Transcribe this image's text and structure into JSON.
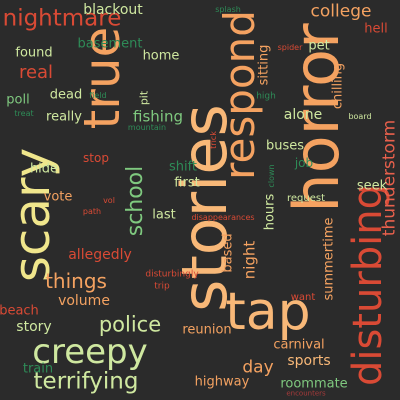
{
  "palette": {
    "background": "#2b2b2b",
    "orange": "#f4a261",
    "light_orange": "#f8b878",
    "red": "#d94a35",
    "dark_red": "#a83a3a",
    "yellow": "#f0e68c",
    "light_green": "#cfe8a0",
    "green": "#7fc97f",
    "teal": "#2e8b57",
    "coral": "#e8604c"
  },
  "words": [
    {
      "text": "stories",
      "color": "light_orange"
    },
    {
      "text": "horror",
      "color": "orange"
    },
    {
      "text": "true",
      "color": "orange"
    },
    {
      "text": "tap",
      "color": "light_orange"
    },
    {
      "text": "respond",
      "color": "orange"
    },
    {
      "text": "scary",
      "color": "yellow"
    },
    {
      "text": "disturbing",
      "color": "red"
    },
    {
      "text": "creepy",
      "color": "light_green"
    },
    {
      "text": "nightmare",
      "color": "red"
    },
    {
      "text": "terrifying",
      "color": "light_green"
    },
    {
      "text": "police",
      "color": "light_green"
    },
    {
      "text": "school",
      "color": "green"
    },
    {
      "text": "things",
      "color": "orange"
    },
    {
      "text": "real",
      "color": "red"
    },
    {
      "text": "college",
      "color": "orange"
    },
    {
      "text": "thunderstorm",
      "color": "coral"
    },
    {
      "text": "fishing",
      "color": "green"
    },
    {
      "text": "night",
      "color": "orange"
    },
    {
      "text": "story",
      "color": "light_green"
    },
    {
      "text": "blackout",
      "color": "light_green"
    },
    {
      "text": "basement",
      "color": "teal"
    },
    {
      "text": "found",
      "color": "light_green"
    },
    {
      "text": "dead",
      "color": "light_green"
    },
    {
      "text": "really",
      "color": "light_green"
    },
    {
      "text": "alone",
      "color": "light_green"
    },
    {
      "text": "home",
      "color": "light_green"
    },
    {
      "text": "pet",
      "color": "light_green"
    },
    {
      "text": "hell",
      "color": "red"
    },
    {
      "text": "sitting",
      "color": "orange"
    },
    {
      "text": "chilling",
      "color": "orange"
    },
    {
      "text": "poll",
      "color": "green"
    },
    {
      "text": "pit",
      "color": "light_green"
    },
    {
      "text": "buses",
      "color": "light_green"
    },
    {
      "text": "job",
      "color": "teal"
    },
    {
      "text": "shift",
      "color": "teal"
    },
    {
      "text": "first",
      "color": "light_green"
    },
    {
      "text": "stop",
      "color": "red"
    },
    {
      "text": "hide",
      "color": "light_green"
    },
    {
      "text": "vote",
      "color": "orange"
    },
    {
      "text": "last",
      "color": "light_green"
    },
    {
      "text": "seek",
      "color": "light_green"
    },
    {
      "text": "based",
      "color": "orange"
    },
    {
      "text": "hours",
      "color": "light_green"
    },
    {
      "text": "summertime",
      "color": "orange"
    },
    {
      "text": "allegedly",
      "color": "red"
    },
    {
      "text": "volume",
      "color": "orange"
    },
    {
      "text": "reunion",
      "color": "orange"
    },
    {
      "text": "carnival",
      "color": "orange"
    },
    {
      "text": "day",
      "color": "orange"
    },
    {
      "text": "sports",
      "color": "light_orange"
    },
    {
      "text": "train",
      "color": "teal"
    },
    {
      "text": "highway",
      "color": "orange"
    },
    {
      "text": "roommate",
      "color": "green"
    },
    {
      "text": "beach",
      "color": "red"
    },
    {
      "text": "want",
      "color": "red"
    },
    {
      "text": "request",
      "color": "light_green"
    },
    {
      "text": "disappearances",
      "color": "red"
    },
    {
      "text": "disturbingly",
      "color": "red"
    },
    {
      "text": "trip",
      "color": "red"
    },
    {
      "text": "splash",
      "color": "teal"
    },
    {
      "text": "spider",
      "color": "red"
    },
    {
      "text": "high",
      "color": "teal"
    },
    {
      "text": "board",
      "color": "light_green"
    },
    {
      "text": "trick",
      "color": "red"
    },
    {
      "text": "clown",
      "color": "teal"
    },
    {
      "text": "field",
      "color": "teal"
    },
    {
      "text": "treat",
      "color": "teal"
    },
    {
      "text": "mountain",
      "color": "teal"
    },
    {
      "text": "path",
      "color": "red"
    },
    {
      "text": "vol",
      "color": "red"
    },
    {
      "text": "encounters",
      "color": "dark_red"
    }
  ]
}
